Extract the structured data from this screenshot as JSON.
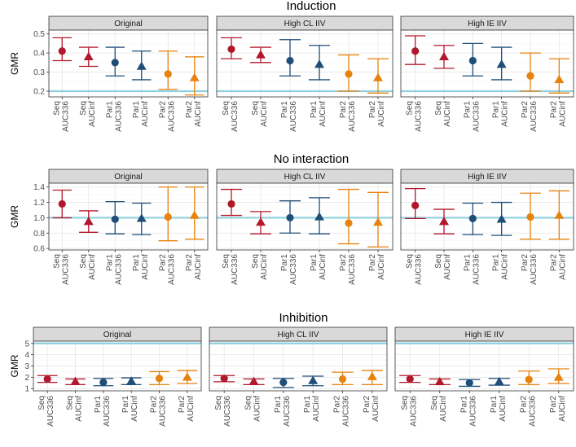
{
  "chart_data": [
    {
      "type": "errorbar",
      "title": "Induction",
      "ylabel": "GMR",
      "ylim": [
        0.17,
        0.52
      ],
      "yticks": [
        0.2,
        0.3,
        0.4,
        0.5
      ],
      "ytick_labels": [
        "0.2",
        "0.3",
        "0.4",
        "0.5"
      ],
      "reference_line": 0.2,
      "categories": [
        "Seq AUC336",
        "Seq AUCinf",
        "Par1 AUC336",
        "Par1 AUCinf",
        "Par2 AUC336",
        "Par2 AUCinf"
      ],
      "category_lines": [
        [
          "Seq",
          "AUC336"
        ],
        [
          "Seq",
          "AUCinf"
        ],
        [
          "Par1",
          "AUC336"
        ],
        [
          "Par1",
          "AUCinf"
        ],
        [
          "Par2",
          "AUC336"
        ],
        [
          "Par2",
          "AUCinf"
        ]
      ],
      "panels": [
        {
          "name": "Original",
          "points": [
            {
              "est": 0.41,
              "lo": 0.36,
              "hi": 0.48
            },
            {
              "est": 0.38,
              "lo": 0.33,
              "hi": 0.43
            },
            {
              "est": 0.35,
              "lo": 0.28,
              "hi": 0.43
            },
            {
              "est": 0.33,
              "lo": 0.26,
              "hi": 0.41
            },
            {
              "est": 0.29,
              "lo": 0.21,
              "hi": 0.41
            },
            {
              "est": 0.27,
              "lo": 0.18,
              "hi": 0.38
            }
          ]
        },
        {
          "name": "High CL IIV",
          "points": [
            {
              "est": 0.42,
              "lo": 0.37,
              "hi": 0.48
            },
            {
              "est": 0.39,
              "lo": 0.35,
              "hi": 0.43
            },
            {
              "est": 0.36,
              "lo": 0.28,
              "hi": 0.47
            },
            {
              "est": 0.34,
              "lo": 0.26,
              "hi": 0.44
            },
            {
              "est": 0.29,
              "lo": 0.2,
              "hi": 0.39
            },
            {
              "est": 0.27,
              "lo": 0.19,
              "hi": 0.37
            }
          ]
        },
        {
          "name": "High IE IIV",
          "points": [
            {
              "est": 0.41,
              "lo": 0.34,
              "hi": 0.49
            },
            {
              "est": 0.38,
              "lo": 0.32,
              "hi": 0.44
            },
            {
              "est": 0.36,
              "lo": 0.28,
              "hi": 0.45
            },
            {
              "est": 0.34,
              "lo": 0.26,
              "hi": 0.43
            },
            {
              "est": 0.28,
              "lo": 0.2,
              "hi": 0.4
            },
            {
              "est": 0.26,
              "lo": 0.19,
              "hi": 0.37
            }
          ]
        }
      ]
    },
    {
      "type": "errorbar",
      "title": "No interaction",
      "ylabel": "GMR",
      "ylim": [
        0.58,
        1.45
      ],
      "yticks": [
        0.6,
        0.8,
        1.0,
        1.2,
        1.4
      ],
      "ytick_labels": [
        "0.6",
        "0.8",
        "1.0",
        "1.2",
        "1.4"
      ],
      "reference_line": 1.0,
      "categories": [
        "Seq AUC336",
        "Seq AUCinf",
        "Par1 AUC336",
        "Par1 AUCinf",
        "Par2 AUC336",
        "Par2 AUCinf"
      ],
      "category_lines": [
        [
          "Seq",
          "AUC336"
        ],
        [
          "Seq",
          "AUCinf"
        ],
        [
          "Par1",
          "AUC336"
        ],
        [
          "Par1",
          "AUCinf"
        ],
        [
          "Par2",
          "AUC336"
        ],
        [
          "Par2",
          "AUCinf"
        ]
      ],
      "panels": [
        {
          "name": "Original",
          "points": [
            {
              "est": 1.18,
              "lo": 1.0,
              "hi": 1.36
            },
            {
              "est": 0.95,
              "lo": 0.81,
              "hi": 1.09
            },
            {
              "est": 0.98,
              "lo": 0.79,
              "hi": 1.21
            },
            {
              "est": 0.99,
              "lo": 0.78,
              "hi": 1.19
            },
            {
              "est": 1.01,
              "lo": 0.7,
              "hi": 1.4
            },
            {
              "est": 1.03,
              "lo": 0.72,
              "hi": 1.4
            }
          ]
        },
        {
          "name": "High CL IIV",
          "points": [
            {
              "est": 1.18,
              "lo": 1.03,
              "hi": 1.37
            },
            {
              "est": 0.94,
              "lo": 0.79,
              "hi": 1.08
            },
            {
              "est": 1.0,
              "lo": 0.8,
              "hi": 1.22
            },
            {
              "est": 1.01,
              "lo": 0.79,
              "hi": 1.26
            },
            {
              "est": 0.93,
              "lo": 0.66,
              "hi": 1.37
            },
            {
              "est": 0.94,
              "lo": 0.62,
              "hi": 1.33
            }
          ]
        },
        {
          "name": "High IE IIV",
          "points": [
            {
              "est": 1.16,
              "lo": 0.99,
              "hi": 1.38
            },
            {
              "est": 0.95,
              "lo": 0.79,
              "hi": 1.11
            },
            {
              "est": 0.99,
              "lo": 0.78,
              "hi": 1.19
            },
            {
              "est": 0.98,
              "lo": 0.77,
              "hi": 1.2
            },
            {
              "est": 1.01,
              "lo": 0.72,
              "hi": 1.32
            },
            {
              "est": 1.03,
              "lo": 0.72,
              "hi": 1.35
            }
          ]
        }
      ]
    },
    {
      "type": "errorbar",
      "title": "Inhibition",
      "ylabel": "GMR",
      "ylim": [
        0.8,
        5.2
      ],
      "yticks": [
        1,
        2,
        3,
        4,
        5
      ],
      "ytick_labels": [
        "1",
        "2",
        "3",
        "4",
        "5"
      ],
      "reference_line": 5,
      "categories": [
        "Seq AUC336",
        "Seq AUCinf",
        "Par1 AUC336",
        "Par1 AUCinf",
        "Par2 AUC336",
        "Par2 AUCinf"
      ],
      "category_lines": [
        [
          "Seq",
          "AUC336"
        ],
        [
          "Seq",
          "AUCinf"
        ],
        [
          "Par1",
          "AUC336"
        ],
        [
          "Par1",
          "AUCinf"
        ],
        [
          "Par2",
          "AUC336"
        ],
        [
          "Par2",
          "AUCinf"
        ]
      ],
      "panels": [
        {
          "name": "Original",
          "points": [
            {
              "est": 1.85,
              "lo": 1.55,
              "hi": 2.15
            },
            {
              "est": 1.62,
              "lo": 1.35,
              "hi": 1.85
            },
            {
              "est": 1.55,
              "lo": 1.25,
              "hi": 1.9
            },
            {
              "est": 1.65,
              "lo": 1.35,
              "hi": 1.95
            },
            {
              "est": 1.9,
              "lo": 1.35,
              "hi": 2.5
            },
            {
              "est": 2.0,
              "lo": 1.45,
              "hi": 2.6
            }
          ]
        },
        {
          "name": "High CL IIV",
          "points": [
            {
              "est": 1.9,
              "lo": 1.6,
              "hi": 2.15
            },
            {
              "est": 1.62,
              "lo": 1.35,
              "hi": 1.85
            },
            {
              "est": 1.55,
              "lo": 1.1,
              "hi": 1.9
            },
            {
              "est": 1.7,
              "lo": 1.25,
              "hi": 2.1
            },
            {
              "est": 1.85,
              "lo": 1.35,
              "hi": 2.45
            },
            {
              "est": 2.05,
              "lo": 1.35,
              "hi": 2.6
            }
          ]
        },
        {
          "name": "High IE IIV",
          "points": [
            {
              "est": 1.85,
              "lo": 1.55,
              "hi": 2.15
            },
            {
              "est": 1.6,
              "lo": 1.35,
              "hi": 1.85
            },
            {
              "est": 1.5,
              "lo": 1.2,
              "hi": 1.8
            },
            {
              "est": 1.6,
              "lo": 1.3,
              "hi": 1.9
            },
            {
              "est": 1.8,
              "lo": 1.35,
              "hi": 2.55
            },
            {
              "est": 2.0,
              "lo": 1.45,
              "hi": 2.75
            }
          ]
        }
      ]
    }
  ],
  "colors": {
    "Seq": "#b2182b",
    "Par1": "#1f4e79",
    "Par2": "#e6820e",
    "reference_line": "#8ecfe0"
  },
  "markers": {
    "AUC336": "circle",
    "AUCinf": "triangle"
  }
}
